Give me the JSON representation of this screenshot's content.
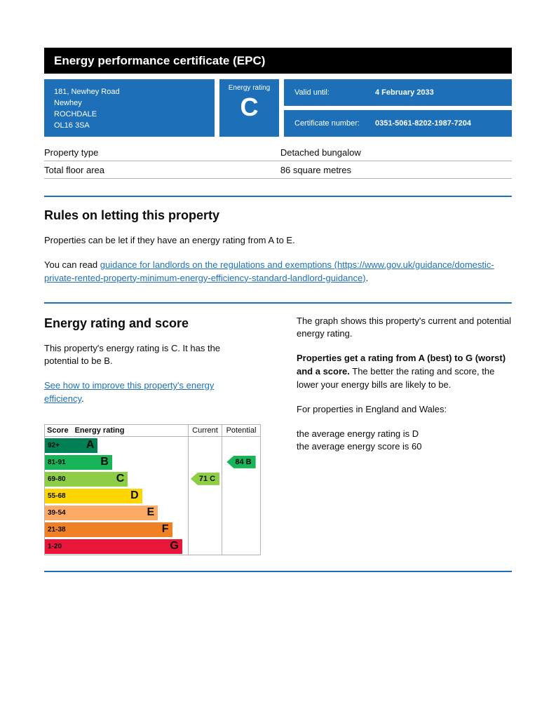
{
  "header": {
    "title": "Energy performance certificate (EPC)"
  },
  "summary": {
    "address_lines": [
      "181, Newhey Road",
      "Newhey",
      "ROCHDALE",
      "OL16 3SA"
    ],
    "energy_rating_label": "Energy rating",
    "energy_rating": "C",
    "valid_until_label": "Valid until:",
    "valid_until": "4 February 2033",
    "certificate_number_label": "Certificate number:",
    "certificate_number": "0351-5061-8202-1987-7204"
  },
  "facts": {
    "rows": [
      {
        "label": "Property type",
        "value": "Detached bungalow"
      },
      {
        "label": "Total floor area",
        "value": "86 square metres"
      }
    ]
  },
  "rules": {
    "heading": "Rules on letting this property",
    "para1": "Properties can be let if they have an energy rating from A to E.",
    "para2_prefix": "You can read ",
    "link_text": "guidance for landlords on the regulations and exemptions (https://www.gov.uk/guidance/domestic-private-rented-property-minimum-energy-efficiency-standard-landlord-guidance)",
    "para2_suffix": "."
  },
  "rating_section": {
    "heading": "Energy rating and score",
    "para1": "This property's energy rating is C. It has the potential to be B.",
    "improve_link_text": "See how to improve this property's energy efficiency",
    "improve_link_suffix": ".",
    "right_para1": "The graph shows this property's current and potential energy rating.",
    "right_para2_bold": "Properties get a rating from A (best) to G (worst) and a score.",
    "right_para2_rest": " The better the rating and score, the lower your energy bills are likely to be.",
    "right_para3": "For properties in England and Wales:",
    "avg_rating_line": "the average energy rating is D",
    "avg_score_line": "the average energy score is 60"
  },
  "chart_data": {
    "type": "epc-rating-chart",
    "headers": {
      "score": "Score",
      "rating": "Energy rating",
      "current": "Current",
      "potential": "Potential"
    },
    "bands": [
      {
        "score": "92+",
        "letter": "A",
        "color": "#008054",
        "width_pct": 37
      },
      {
        "score": "81-91",
        "letter": "B",
        "color": "#19b459",
        "width_pct": 47
      },
      {
        "score": "69-80",
        "letter": "C",
        "color": "#8dce46",
        "width_pct": 58
      },
      {
        "score": "55-68",
        "letter": "D",
        "color": "#ffd500",
        "width_pct": 68
      },
      {
        "score": "39-54",
        "letter": "E",
        "color": "#fcaa65",
        "width_pct": 79
      },
      {
        "score": "21-38",
        "letter": "F",
        "color": "#ef8023",
        "width_pct": 89
      },
      {
        "score": "1-20",
        "letter": "G",
        "color": "#e9153b",
        "width_pct": 96
      }
    ],
    "current": {
      "value": 71,
      "letter": "C",
      "band_index": 2,
      "color": "#8dce46",
      "label": "71 C"
    },
    "potential": {
      "value": 84,
      "letter": "B",
      "band_index": 1,
      "color": "#19b459",
      "label": "84 B"
    },
    "accent_color": "#1d70b8"
  }
}
